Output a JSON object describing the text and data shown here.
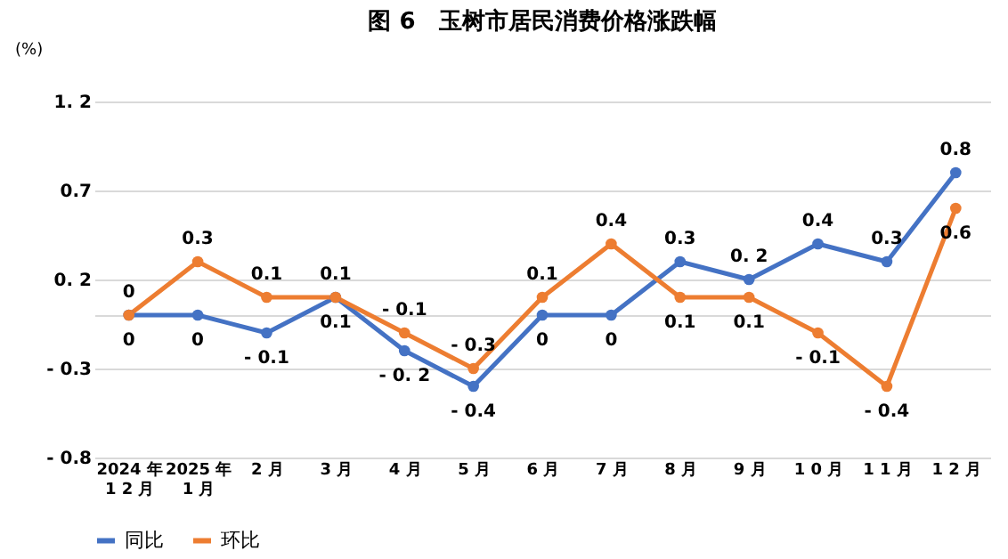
{
  "chart_data": {
    "type": "line",
    "title": "图 6　玉树市居民消费价格涨跌幅",
    "ylabel": "(%)",
    "categories": [
      "2024 年\n1 2 月",
      "2025 年\n1 月",
      "2 月",
      "3 月",
      "4 月",
      "5 月",
      "6 月",
      "7 月",
      "8 月",
      "9 月",
      "1 0 月",
      "1 1 月",
      "1 2 月"
    ],
    "series": [
      {
        "name": "同比",
        "color": "#4472c4",
        "values": [
          0,
          0,
          -0.1,
          0.1,
          -0.2,
          -0.4,
          0,
          0,
          0.3,
          0.2,
          0.4,
          0.3,
          0.8
        ],
        "value_labels": [
          "0",
          "0",
          "- 0.1",
          "0.1",
          "- 0. 2",
          "- 0.4",
          "0",
          "0",
          "0.3",
          "0. 2",
          "0.4",
          "0.3",
          "0.8"
        ]
      },
      {
        "name": "环比",
        "color": "#ed7d31",
        "values": [
          0,
          0.3,
          0.1,
          0.1,
          -0.1,
          -0.3,
          0.1,
          0.4,
          0.1,
          0.1,
          -0.1,
          -0.4,
          0.6
        ],
        "value_labels": [
          "0",
          "0.3",
          "0.1",
          "0.1",
          "- 0.1",
          "- 0.3",
          "0.1",
          "0.4",
          "0.1",
          "0.1",
          "- 0.1",
          "- 0.4",
          "0.6"
        ]
      }
    ],
    "ylim": [
      -0.8,
      1.2
    ],
    "yticks": [
      {
        "value": 1.2,
        "label": "1.  2"
      },
      {
        "value": 0.7,
        "label": "0.7"
      },
      {
        "value": 0.2,
        "label": "0.  2"
      },
      {
        "value": 0,
        "label": null
      },
      {
        "value": -0.3,
        "label": "- 0.3"
      },
      {
        "value": -0.8,
        "label": "- 0.8"
      }
    ],
    "grid": "y",
    "legend": "bottom",
    "marker": "circle",
    "line_style": "solid"
  }
}
